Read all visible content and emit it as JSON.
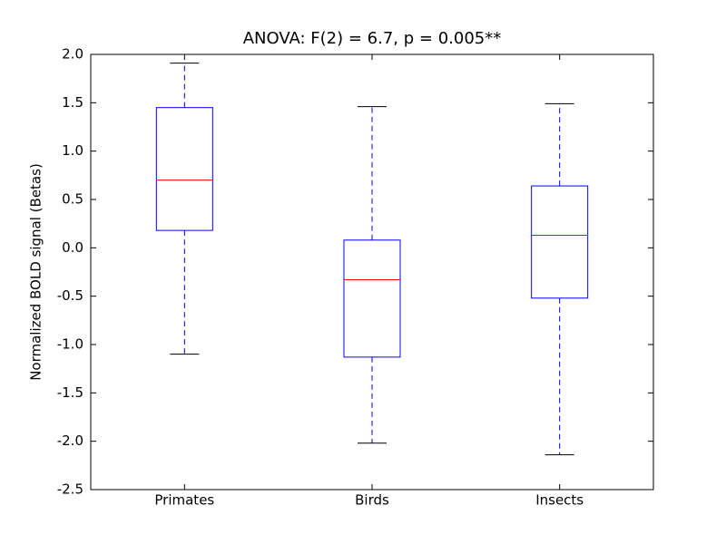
{
  "chart_data": {
    "type": "box",
    "title": "ANOVA: F(2) = 6.7, p = 0.005**",
    "ylabel": "Normalized BOLD signal (Betas)",
    "categories": [
      "Primates",
      "Birds",
      "Insects"
    ],
    "boxes": [
      {
        "whislo": -1.1,
        "q1": 0.18,
        "med": 0.7,
        "q3": 1.45,
        "whishi": 1.91
      },
      {
        "whislo": -2.02,
        "q1": -1.13,
        "med": -0.33,
        "q3": 0.08,
        "whishi": 1.46
      },
      {
        "whislo": -2.14,
        "q1": -0.52,
        "med": 0.13,
        "q3": 0.64,
        "whishi": 1.49
      }
    ],
    "color": "#0000ff",
    "median_color": "#ff0000",
    "ylim": [
      -2.5,
      2.0
    ],
    "yticks": [
      -2.5,
      {
        "value": -2,
        "label": "-2.0"
      },
      -1.5,
      {
        "value": -1,
        "label": "-1.0"
      },
      -0.5,
      {
        "value": 0,
        "label": "0.0"
      },
      0.5,
      {
        "value": 1,
        "label": "1.0"
      },
      1.5,
      {
        "value": 2,
        "label": "2.0"
      }
    ]
  }
}
